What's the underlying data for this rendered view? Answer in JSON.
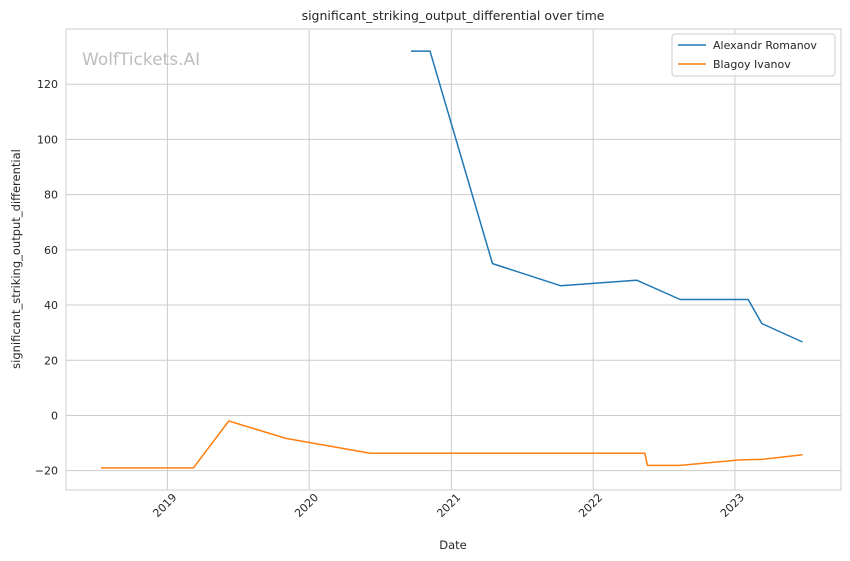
{
  "chart_data": {
    "type": "line",
    "title": "significant_striking_output_differential over time",
    "xlabel": "Date",
    "ylabel": "significant_striking_output_differential",
    "watermark": "WolfTickets.AI",
    "xlim": [
      "2018-04-15",
      "2023-10-01"
    ],
    "ylim": [
      -27,
      140
    ],
    "x_ticks": [
      {
        "date": "2019-01-01",
        "label": "2019"
      },
      {
        "date": "2020-01-01",
        "label": "2020"
      },
      {
        "date": "2021-01-01",
        "label": "2021"
      },
      {
        "date": "2022-01-01",
        "label": "2022"
      },
      {
        "date": "2023-01-01",
        "label": "2023"
      }
    ],
    "y_ticks": [
      -20,
      0,
      20,
      40,
      60,
      80,
      100,
      120
    ],
    "grid": true,
    "legend_position": "top-right",
    "series": [
      {
        "name": "Alexandr Romanov",
        "color": "#1f77b4",
        "points": [
          {
            "x": "2020-09-19",
            "y": 132
          },
          {
            "x": "2020-11-07",
            "y": 132
          },
          {
            "x": "2021-04-17",
            "y": 55
          },
          {
            "x": "2021-10-09",
            "y": 47
          },
          {
            "x": "2022-04-23",
            "y": 49
          },
          {
            "x": "2022-08-13",
            "y": 42
          },
          {
            "x": "2023-02-04",
            "y": 42
          },
          {
            "x": "2023-03-11",
            "y": 33.3
          },
          {
            "x": "2023-06-24",
            "y": 26.6
          }
        ]
      },
      {
        "name": "Blagoy Ivanov",
        "color": "#ff7f0e",
        "points": [
          {
            "x": "2018-07-14",
            "y": -19
          },
          {
            "x": "2019-03-09",
            "y": -19
          },
          {
            "x": "2019-06-08",
            "y": -2
          },
          {
            "x": "2019-11-02",
            "y": -8.3
          },
          {
            "x": "2020-06-06",
            "y": -13.7
          },
          {
            "x": "2022-05-14",
            "y": -13.7
          },
          {
            "x": "2022-05-21",
            "y": -18.1
          },
          {
            "x": "2022-08-13",
            "y": -18.1
          },
          {
            "x": "2023-01-14",
            "y": -16.1
          },
          {
            "x": "2023-03-11",
            "y": -15.9
          },
          {
            "x": "2023-06-24",
            "y": -14.2
          }
        ]
      }
    ]
  }
}
